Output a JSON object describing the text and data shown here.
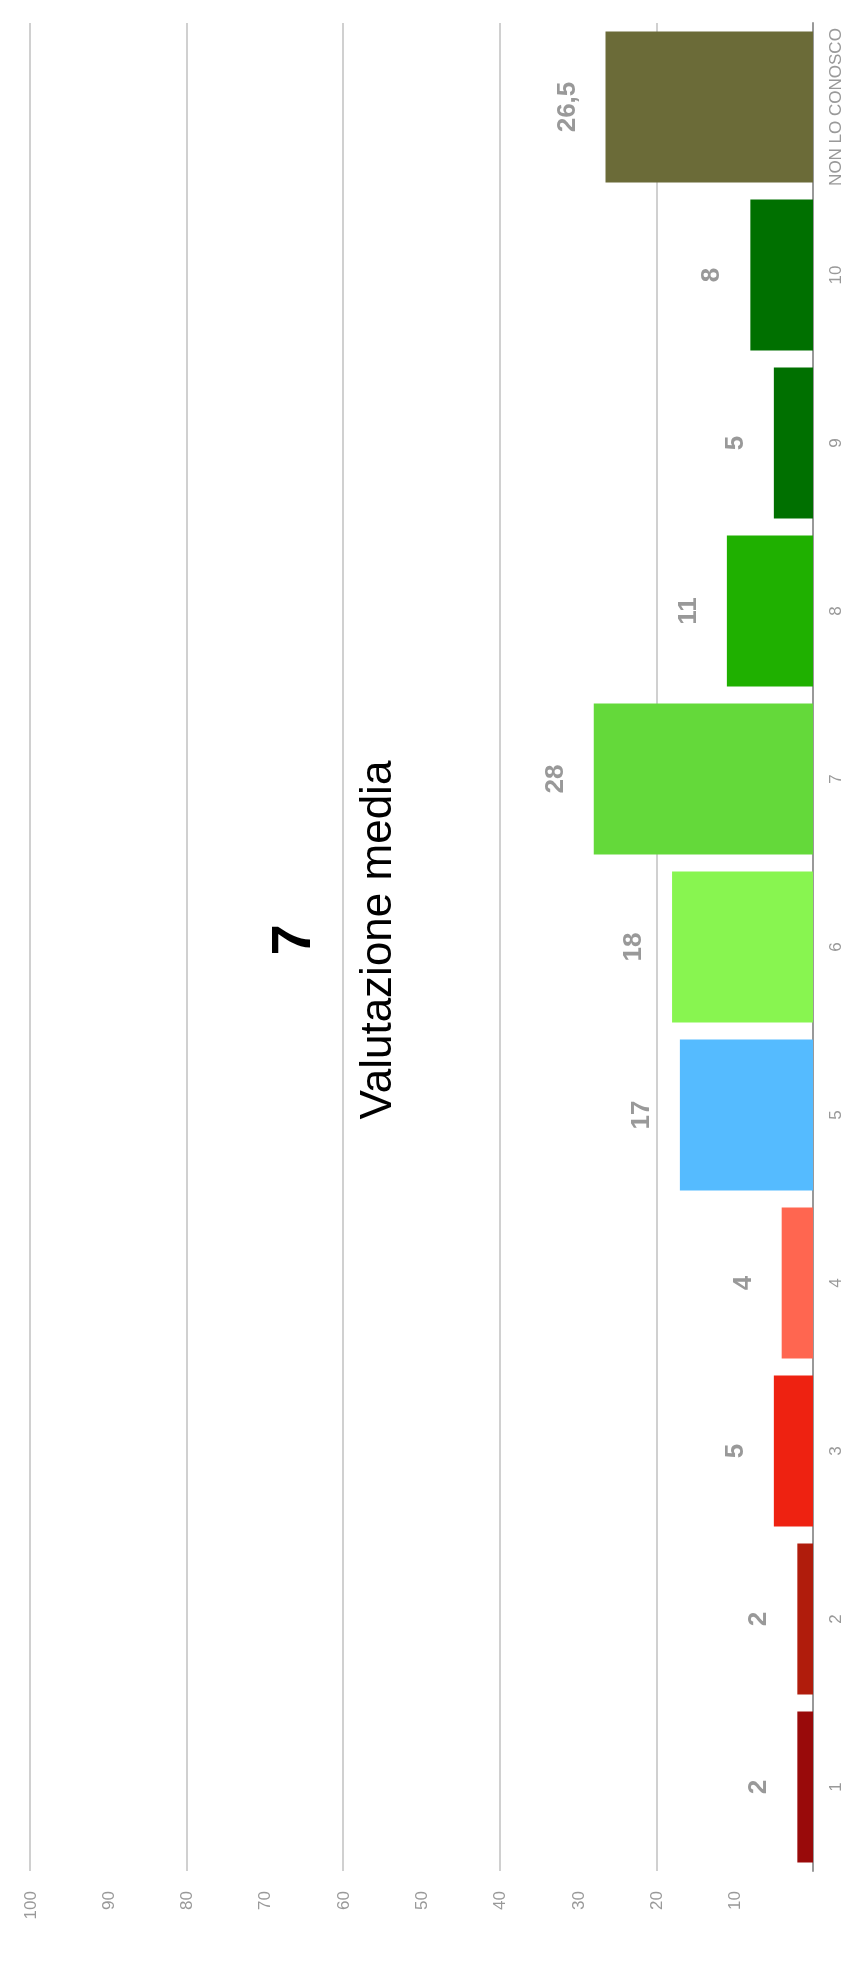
{
  "chart_data": {
    "type": "bar",
    "orientation": "horizontal",
    "categories": [
      "NON LO CONOSCO",
      "10",
      "9",
      "8",
      "7",
      "6",
      "5",
      "4",
      "3",
      "2",
      "1"
    ],
    "values": [
      26.5,
      8,
      5,
      11,
      28,
      18,
      17,
      4,
      5,
      2,
      2
    ],
    "colors": [
      "#6b6b38",
      "#007000",
      "#007000",
      "#1fb000",
      "#64d93a",
      "#88f550",
      "#55bbff",
      "#ff6650",
      "#ee2211",
      "#b01c0c",
      "#990a0a"
    ],
    "value_labels": [
      "26,5",
      "8",
      "5",
      "11",
      "28",
      "18",
      "17",
      "4",
      "5",
      "2",
      "2"
    ],
    "xlim": [
      100,
      0
    ],
    "xticks": [
      100,
      90,
      80,
      70,
      60,
      50,
      40,
      30,
      20,
      10
    ],
    "grid": true,
    "annotations": [
      "7",
      "Valutazione media"
    ]
  }
}
